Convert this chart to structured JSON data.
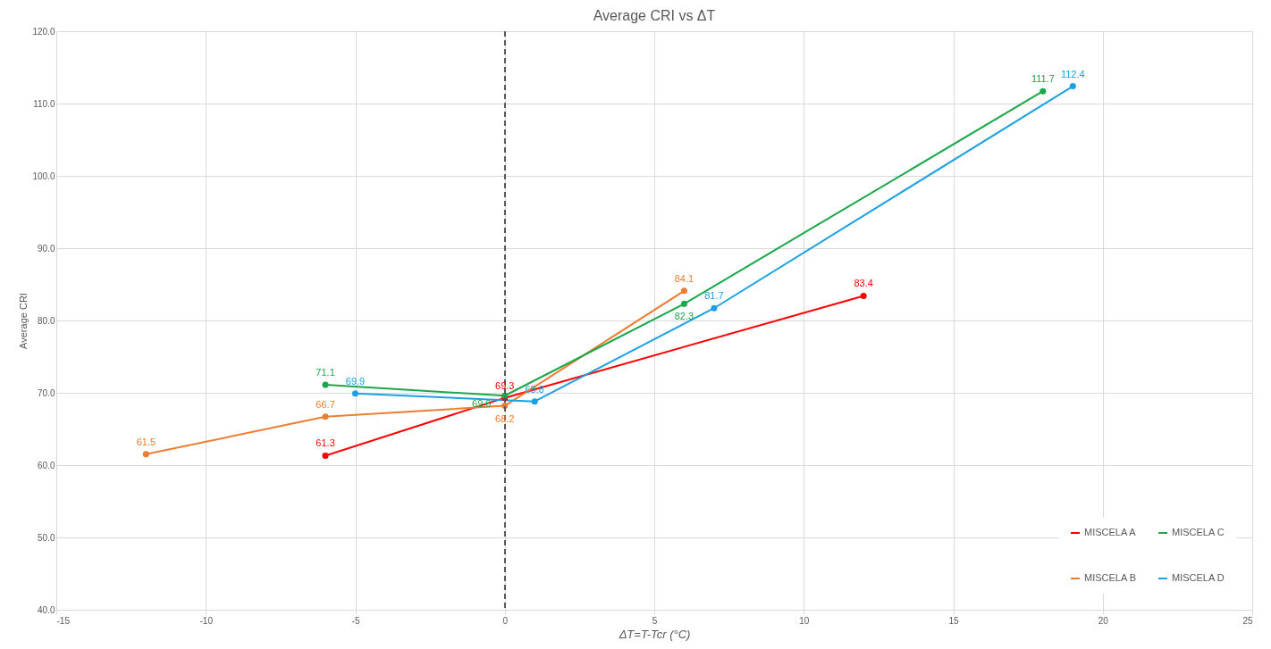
{
  "chart_data": {
    "type": "line",
    "title": "Average CRI vs ΔT",
    "xlabel": "ΔT=T-Tcr (°C)",
    "ylabel": "Average CRI",
    "series": [
      {
        "name": "MISCELA A",
        "color": "#ff0000",
        "x": [
          -6,
          0,
          12
        ],
        "values": [
          61.3,
          69.3,
          83.4
        ]
      },
      {
        "name": "MISCELA B",
        "color": "#ed7d31",
        "x": [
          -12,
          -6,
          0,
          6
        ],
        "values": [
          61.5,
          66.7,
          68.2,
          84.1
        ]
      },
      {
        "name": "MISCELA C",
        "color": "#1aa84a",
        "x": [
          -6,
          0,
          6,
          18
        ],
        "values": [
          71.1,
          69.6,
          82.3,
          111.7
        ]
      },
      {
        "name": "MISCELA D",
        "color": "#1ba1e2",
        "x": [
          -5,
          1,
          7,
          19
        ],
        "values": [
          69.9,
          68.8,
          81.7,
          112.4
        ]
      }
    ],
    "xlim": [
      -15,
      25
    ],
    "xticks": [
      -15,
      -10,
      -5,
      0,
      5,
      10,
      15,
      20,
      25
    ],
    "ylim": [
      40,
      120
    ],
    "yticks": [
      {
        "value": 40,
        "label": "40.0"
      },
      {
        "value": 50,
        "label": "50.0"
      },
      {
        "value": 60,
        "label": "60.0"
      },
      {
        "value": 70,
        "label": "70.0"
      },
      {
        "value": 80,
        "label": "80.0"
      },
      {
        "value": 90,
        "label": "90.0"
      },
      {
        "value": 100,
        "label": "100.0"
      },
      {
        "value": 110,
        "label": "110.0"
      },
      {
        "value": 120,
        "label": "120.0"
      }
    ],
    "ref_lines": [
      {
        "axis": "x",
        "value": 0,
        "color": "#595959",
        "line_style": "dashed"
      }
    ],
    "grid": true,
    "legend": "bottom right",
    "marker": "circle",
    "line_style": "solid",
    "data_labels": true
  }
}
